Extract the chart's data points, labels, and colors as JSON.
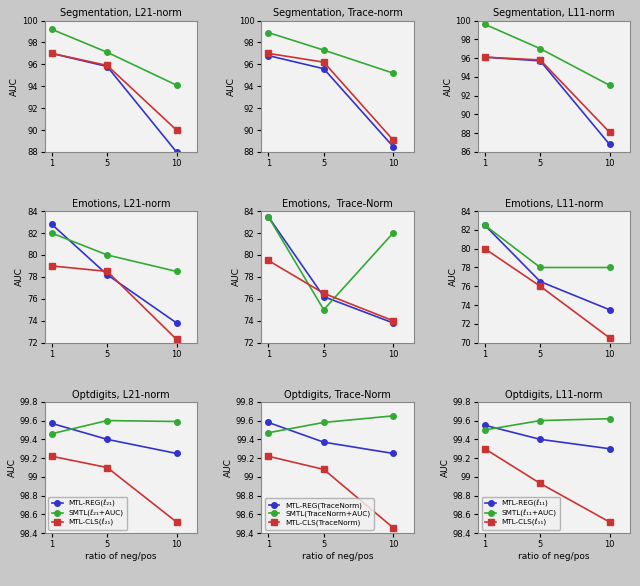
{
  "x": [
    1,
    5,
    10
  ],
  "plots": [
    {
      "title": "Segmentation, L21-norm",
      "ylabel": "AUC",
      "ylim": [
        88,
        100
      ],
      "yticks": [
        88,
        90,
        92,
        94,
        96,
        98,
        100
      ],
      "blue": [
        97.0,
        95.8,
        88.0
      ],
      "green": [
        99.2,
        97.1,
        94.1
      ],
      "red": [
        97.0,
        95.9,
        90.0
      ]
    },
    {
      "title": "Segmentation, Trace-norm",
      "ylabel": "AUC",
      "ylim": [
        88,
        100
      ],
      "yticks": [
        88,
        90,
        92,
        94,
        96,
        98,
        100
      ],
      "blue": [
        96.8,
        95.6,
        88.5
      ],
      "green": [
        98.9,
        97.3,
        95.2
      ],
      "red": [
        97.0,
        96.2,
        89.1
      ]
    },
    {
      "title": "Segmentation, L11-norm",
      "ylabel": "AUC",
      "ylim": [
        86,
        100
      ],
      "yticks": [
        86,
        88,
        90,
        92,
        94,
        96,
        98,
        100
      ],
      "blue": [
        96.1,
        95.7,
        86.8
      ],
      "green": [
        99.6,
        97.0,
        93.1
      ],
      "red": [
        96.1,
        95.8,
        88.1
      ]
    },
    {
      "title": "Emotions, L21-norm",
      "ylabel": "AUC",
      "ylim": [
        72,
        84
      ],
      "yticks": [
        72,
        74,
        76,
        78,
        80,
        82,
        84
      ],
      "blue": [
        82.8,
        78.2,
        73.8
      ],
      "green": [
        82.0,
        80.0,
        78.5
      ],
      "red": [
        79.0,
        78.5,
        72.3
      ]
    },
    {
      "title": "Emotions,  Trace-Norm",
      "ylabel": "AUC",
      "ylim": [
        72,
        84
      ],
      "yticks": [
        72,
        74,
        76,
        78,
        80,
        82,
        84
      ],
      "blue": [
        83.5,
        76.2,
        73.8
      ],
      "green": [
        83.5,
        75.0,
        82.0
      ],
      "red": [
        79.5,
        76.5,
        74.0
      ]
    },
    {
      "title": "Emotions, L11-norm",
      "ylabel": "AUC",
      "ylim": [
        70,
        84
      ],
      "yticks": [
        70,
        72,
        74,
        76,
        78,
        80,
        82,
        84
      ],
      "blue": [
        82.5,
        76.5,
        73.5
      ],
      "green": [
        82.5,
        78.0,
        78.0
      ],
      "red": [
        80.0,
        76.0,
        70.5
      ]
    },
    {
      "title": "Optdigits, L21-norm",
      "ylabel": "AUC",
      "ylim": [
        98.4,
        99.8
      ],
      "yticks": [
        98.4,
        98.6,
        98.8,
        99.0,
        99.2,
        99.4,
        99.6,
        99.8
      ],
      "blue": [
        99.57,
        99.4,
        99.25
      ],
      "green": [
        99.46,
        99.6,
        99.59
      ],
      "red": [
        99.22,
        99.1,
        98.52
      ],
      "legend": [
        "MTL-REG(ℓ₂₁)",
        "SMTL(ℓ₂₁+AUC)",
        "MTL-CLS(ℓ₂₁)"
      ]
    },
    {
      "title": "Optdigits, Trace-Norm",
      "ylabel": "AUC",
      "ylim": [
        98.4,
        99.8
      ],
      "yticks": [
        98.4,
        98.6,
        98.8,
        99.0,
        99.2,
        99.4,
        99.6,
        99.8
      ],
      "blue": [
        99.58,
        99.37,
        99.25
      ],
      "green": [
        99.47,
        99.58,
        99.65
      ],
      "red": [
        99.22,
        99.08,
        98.46
      ],
      "legend": [
        "MTL-REG(TraceNorm)",
        "SMTL(TraceNorm+AUC)",
        "MTL-CLS(TraceNorm)"
      ]
    },
    {
      "title": "Optdigits, L11-norm",
      "ylabel": "AUC",
      "ylim": [
        98.4,
        99.8
      ],
      "yticks": [
        98.4,
        98.6,
        98.8,
        99.0,
        99.2,
        99.4,
        99.6,
        99.8
      ],
      "blue": [
        99.55,
        99.4,
        99.3
      ],
      "green": [
        99.5,
        99.6,
        99.62
      ],
      "red": [
        99.3,
        98.93,
        98.52
      ],
      "legend": [
        "MTL-REG(ℓ₁₁)",
        "SMTL(ℓ₁₁+AUC)",
        "MTL-CLS(ℓ₁₁)"
      ]
    }
  ],
  "blue_color": "#3333cc",
  "green_color": "#33aa33",
  "red_color": "#cc3333",
  "blue_marker": "o",
  "green_marker": "o",
  "red_marker": "s",
  "xlabel": "ratio of neg/pos",
  "markersize": 4,
  "linewidth": 1.2,
  "bg_color": "#e8e8e8",
  "fig_bg": "#d4d4d4"
}
